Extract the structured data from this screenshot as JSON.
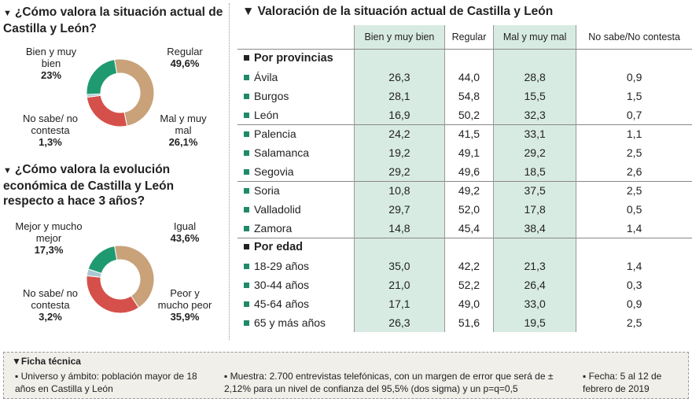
{
  "chart_data": [
    {
      "type": "pie",
      "title": "¿Cómo valora la situación actual de Castilla y León?",
      "slices": [
        {
          "label": "Regular",
          "value": 49.6,
          "value_label": "49,6%",
          "color": "#c9a27a"
        },
        {
          "label": "Mal y muy mal",
          "value": 26.1,
          "value_label": "26,1%",
          "color": "#d5504a"
        },
        {
          "label": "No sabe/ no contesta",
          "value": 1.3,
          "value_label": "1,3%",
          "color": "#a9c8d4"
        },
        {
          "label": "Bien y muy bien",
          "value": 23,
          "value_label": "23%",
          "color": "#1f9a70"
        }
      ]
    },
    {
      "type": "pie",
      "title": "¿Cómo valora la evolución económica de Castilla y León respecto a hace 3 años?",
      "slices": [
        {
          "label": "Igual",
          "value": 43.6,
          "value_label": "43,6%",
          "color": "#c9a27a"
        },
        {
          "label": "Peor y mucho peor",
          "value": 35.9,
          "value_label": "35,9%",
          "color": "#d5504a"
        },
        {
          "label": "No sabe/ no contesta",
          "value": 3.2,
          "value_label": "3,2%",
          "color": "#a9c8d4"
        },
        {
          "label": "Mejor y mucho mejor",
          "value": 17.3,
          "value_label": "17,3%",
          "color": "#1f9a70"
        }
      ]
    },
    {
      "type": "table",
      "title": "Valoración de la situación actual de Castilla y León",
      "columns": [
        "",
        "Bien y muy bien",
        "Regular",
        "Mal y muy mal",
        "No sabe/No contesta"
      ],
      "sections": [
        {
          "name": "Por provincias",
          "rows": [
            [
              "Ávila",
              "26,3",
              "44,0",
              "28,8",
              "0,9"
            ],
            [
              "Burgos",
              "28,1",
              "54,8",
              "15,5",
              "1,5"
            ],
            [
              "León",
              "16,9",
              "50,2",
              "32,3",
              "0,7"
            ],
            [
              "Palencia",
              "24,2",
              "41,5",
              "33,1",
              "1,1"
            ],
            [
              "Salamanca",
              "19,2",
              "49,1",
              "29,2",
              "2,5"
            ],
            [
              "Segovia",
              "29,2",
              "49,6",
              "18,5",
              "2,6"
            ],
            [
              "Soria",
              "10,8",
              "49,2",
              "37,5",
              "2,5"
            ],
            [
              "Valladolid",
              "29,7",
              "52,0",
              "17,8",
              "0,5"
            ],
            [
              "Zamora",
              "14,8",
              "45,4",
              "38,4",
              "1,4"
            ]
          ]
        },
        {
          "name": "Por edad",
          "rows": [
            [
              "18-29 años",
              "35,0",
              "42,2",
              "21,3",
              "1,4"
            ],
            [
              "30-44 años",
              "21,0",
              "52,2",
              "26,4",
              "0,3"
            ],
            [
              "45-64 años",
              "17,1",
              "49,0",
              "33,0",
              "0,9"
            ],
            [
              "65 y más años",
              "26,3",
              "51,6",
              "19,5",
              "2,5"
            ]
          ]
        }
      ]
    }
  ],
  "footer": {
    "title": "Ficha técnica",
    "universo": "Universo y ámbito: población mayor de 18 años en Castilla y León",
    "muestra": "Muestra: 2.700 entrevistas telefónicas, con un margen de error que será de ± 2,12% para un nivel de confianza del 95,5% (dos sigma) y un p=q=0,5",
    "fecha": "Fecha: 5 al 12 de febrero de 2019"
  }
}
